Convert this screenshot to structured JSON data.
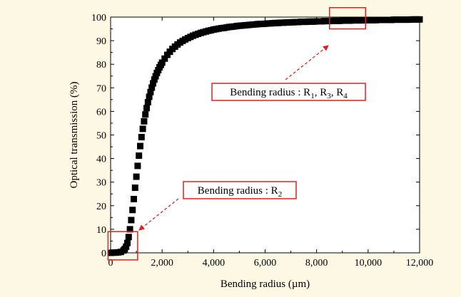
{
  "background_color": "#fdf8e4",
  "chart_data": {
    "type": "scatter",
    "marker": "square",
    "marker_color": "#000000",
    "xlabel": "Bending radius (µm)",
    "ylabel": "Optical transmission (%)",
    "xlim": [
      0,
      12000
    ],
    "ylim": [
      0,
      100
    ],
    "x_ticks": [
      0,
      2000,
      4000,
      6000,
      8000,
      10000,
      12000
    ],
    "x_tick_labels": [
      "0",
      "2,000",
      "4,000",
      "6,000",
      "8,000",
      "10,000",
      "12,000"
    ],
    "y_ticks": [
      0,
      10,
      20,
      30,
      40,
      50,
      60,
      70,
      80,
      90,
      100
    ],
    "y_tick_labels": [
      "0",
      "10",
      "20",
      "30",
      "40",
      "50",
      "60",
      "70",
      "80",
      "90",
      "100"
    ],
    "grid": false,
    "series": [
      {
        "x": [
          0,
          100,
          200,
          300,
          400,
          500,
          550,
          600,
          650,
          700,
          750,
          800,
          850,
          900,
          950,
          1000,
          1050,
          1100,
          1150,
          1200,
          1250,
          1300,
          1350,
          1400,
          1450,
          1500,
          1550,
          1600,
          1650,
          1700,
          1750,
          1800,
          1850,
          1900,
          1950,
          2000,
          2100,
          2200,
          2300,
          2400,
          2500,
          2600,
          2700,
          2800,
          2900,
          3000,
          3100,
          3200,
          3300,
          3400,
          3500,
          3600,
          3700,
          3800,
          3900,
          4000,
          4100,
          4200,
          4300,
          4400,
          4500,
          4600,
          4700,
          4800,
          4900,
          5000,
          5100,
          5200,
          5300,
          5400,
          5500,
          5600,
          5700,
          5800,
          5900,
          6000,
          6100,
          6200,
          6300,
          6400,
          6500,
          6600,
          6700,
          6800,
          6900,
          7000,
          7100,
          7200,
          7300,
          7400,
          7500,
          7600,
          7700,
          7800,
          7900,
          8000,
          8100,
          8200,
          8300,
          8400,
          8500,
          8600,
          8700,
          8800,
          8900,
          9000,
          9100,
          9200,
          9300,
          9400,
          9500,
          9600,
          9700,
          9800,
          9900,
          10000,
          10100,
          10200,
          10300,
          10400,
          10500,
          10600,
          10700,
          10800,
          10900,
          11000,
          11100,
          11200,
          11300,
          11400,
          11500,
          11600,
          11700,
          11800,
          11900,
          12000
        ],
        "y": [
          0.0,
          0.1,
          0.1,
          0.2,
          0.4,
          1.0,
          1.6,
          2.6,
          4.2,
          6.7,
          10.0,
          13.9,
          18.2,
          22.8,
          27.6,
          32.3,
          36.9,
          41.2,
          45.3,
          49.1,
          52.6,
          55.8,
          58.7,
          61.4,
          63.9,
          66.2,
          68.2,
          70.1,
          71.9,
          73.5,
          74.9,
          76.3,
          77.5,
          78.7,
          79.7,
          80.7,
          82.4,
          84.0,
          85.3,
          86.5,
          87.5,
          88.4,
          89.2,
          89.9,
          90.5,
          91.1,
          91.6,
          92.1,
          92.5,
          92.9,
          93.3,
          93.6,
          93.9,
          94.2,
          94.4,
          94.7,
          94.9,
          95.1,
          95.3,
          95.4,
          95.6,
          95.8,
          95.9,
          96.0,
          96.2,
          96.3,
          96.4,
          96.5,
          96.6,
          96.7,
          96.8,
          96.9,
          97.0,
          97.1,
          97.1,
          97.2,
          97.3,
          97.3,
          97.4,
          97.5,
          97.5,
          97.6,
          97.6,
          97.7,
          97.7,
          97.8,
          97.8,
          97.9,
          97.9,
          98.0,
          98.0,
          98.0,
          98.1,
          98.1,
          98.1,
          98.2,
          98.2,
          98.2,
          98.3,
          98.3,
          98.3,
          98.4,
          98.4,
          98.4,
          98.4,
          98.5,
          98.5,
          98.5,
          98.5,
          98.6,
          98.6,
          98.6,
          98.6,
          98.6,
          98.7,
          98.7,
          98.7,
          98.7,
          98.7,
          98.8,
          98.8,
          98.8,
          98.8,
          98.8,
          98.8,
          98.9,
          98.9,
          98.9,
          98.9,
          98.9,
          98.9,
          98.9,
          99.0,
          99.0,
          99.0,
          99.0
        ]
      }
    ],
    "annotations": [
      {
        "text_main": "Bending radius : R",
        "subscripts": [
          "1",
          "3",
          "4"
        ],
        "separator": ", ",
        "highlight_x_range": [
          8500,
          9900
        ],
        "highlight_y_range": [
          95,
          104
        ],
        "color": "#e02020"
      },
      {
        "text_main": "Bending radius : R",
        "subscripts": [
          "2"
        ],
        "separator": ", ",
        "highlight_x_range": [
          -100,
          1050
        ],
        "highlight_y_range": [
          -3,
          9
        ],
        "color": "#e02020"
      }
    ]
  }
}
